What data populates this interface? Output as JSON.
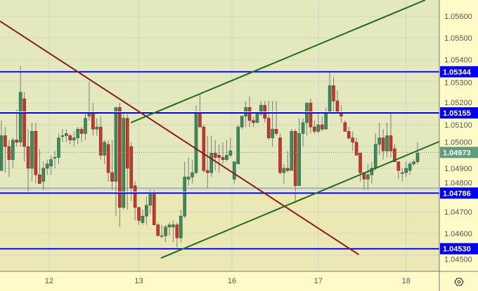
{
  "chart_data": {
    "type": "candlestick",
    "title": "",
    "ylim": [
      1.04425,
      1.05674
    ],
    "grid": true,
    "colors": {
      "up": "#3f8a5c",
      "down": "#c8372a",
      "wick": "#7a7a7a",
      "level": "#0000ff",
      "trend_up": "#1f6b1f",
      "trend_down": "#8b1a1a",
      "current": "#5f9e7c",
      "bg_upper": "#e4e9bd",
      "bg_lower": "#ebe8b4",
      "axis_bg": "#fffbc9"
    },
    "x_ticks": [
      {
        "label": "12",
        "index": 12.5
      },
      {
        "label": "13",
        "index": 36
      },
      {
        "label": "16",
        "index": 60.4
      },
      {
        "label": "17",
        "index": 83
      },
      {
        "label": "18",
        "index": 106
      }
    ],
    "y_ticks": [
      "1.05600",
      "1.05500",
      "1.05400",
      "1.05300",
      "1.05200",
      "1.05100",
      "1.05000",
      "1.04900",
      "1.04800",
      "1.04700",
      "1.04600",
      "1.04500"
    ],
    "levels": [
      {
        "label": "1.05344",
        "value": 1.05344
      },
      {
        "label": "1.05155",
        "value": 1.05155
      },
      {
        "label": "1.04786",
        "value": 1.04786
      },
      {
        "label": "1.04530",
        "value": 1.0453
      }
    ],
    "current_price": {
      "label": "1.04973",
      "value": 1.04973
    },
    "trendlines": [
      {
        "color": "trend_down",
        "from": [
          -0.4,
          1.05577
        ],
        "to": [
          93.6,
          1.04503
        ]
      },
      {
        "color": "trend_up",
        "from": [
          33.9,
          1.0511
        ],
        "to": [
          111,
          1.05674
        ]
      },
      {
        "color": "trend_up",
        "from": [
          41.8,
          1.04487
        ],
        "to": [
          114.7,
          1.05023
        ]
      }
    ],
    "candles_ohlc": [
      [
        1.0489,
        1.0512,
        1.0489,
        1.0505
      ],
      [
        1.0505,
        1.0509,
        1.0488,
        1.05
      ],
      [
        1.05,
        1.0503,
        1.0486,
        1.0494
      ],
      [
        1.0494,
        1.0504,
        1.049,
        1.0503
      ],
      [
        1.0503,
        1.0517,
        1.05,
        1.0502
      ],
      [
        1.0502,
        1.0537,
        1.05,
        1.0525
      ],
      [
        1.0522,
        1.0525,
        1.0493,
        1.05
      ],
      [
        1.05,
        1.0508,
        1.0479,
        1.049
      ],
      [
        1.049,
        1.0511,
        1.0484,
        1.0507
      ],
      [
        1.0507,
        1.0511,
        1.0483,
        1.0487
      ],
      [
        1.0487,
        1.0499,
        1.0483,
        1.0483
      ],
      [
        1.0484,
        1.0493,
        1.048,
        1.049
      ],
      [
        1.049,
        1.0494,
        1.0487,
        1.0492
      ],
      [
        1.0491,
        1.0496,
        1.0487,
        1.0494
      ],
      [
        1.0495,
        1.0498,
        1.049,
        1.0495
      ],
      [
        1.0495,
        1.0506,
        1.0492,
        1.0504
      ],
      [
        1.0505,
        1.0508,
        1.0502,
        1.0505
      ],
      [
        1.0505,
        1.0508,
        1.0502,
        1.0506
      ],
      [
        1.0505,
        1.0506,
        1.0501,
        1.0503
      ],
      [
        1.0503,
        1.0507,
        1.05,
        1.0504
      ],
      [
        1.0504,
        1.0509,
        1.0501,
        1.0508
      ],
      [
        1.0508,
        1.0509,
        1.0502,
        1.0506
      ],
      [
        1.0506,
        1.0516,
        1.0503,
        1.0513
      ],
      [
        1.0514,
        1.053,
        1.0512,
        1.0516
      ],
      [
        1.0516,
        1.052,
        1.0505,
        1.0508
      ],
      [
        1.0508,
        1.0513,
        1.0505,
        1.0509
      ],
      [
        1.0509,
        1.0514,
        1.0494,
        1.0496
      ],
      [
        1.0496,
        1.0503,
        1.0492,
        1.0502
      ],
      [
        1.0501,
        1.0503,
        1.0484,
        1.0488
      ],
      [
        1.0488,
        1.0503,
        1.048,
        1.0484
      ],
      [
        1.0484,
        1.0518,
        1.0468,
        1.0518
      ],
      [
        1.0518,
        1.052,
        1.0463,
        1.0472
      ],
      [
        1.0472,
        1.0515,
        1.0471,
        1.0513
      ],
      [
        1.0513,
        1.0515,
        1.0471,
        1.049
      ],
      [
        1.05,
        1.0502,
        1.0475,
        1.0481
      ],
      [
        1.0482,
        1.0484,
        1.0466,
        1.0472
      ],
      [
        1.0472,
        1.0472,
        1.0464,
        1.0466
      ],
      [
        1.0465,
        1.0471,
        1.0464,
        1.0468
      ],
      [
        1.0468,
        1.0477,
        1.0464,
        1.0473
      ],
      [
        1.0473,
        1.048,
        1.0469,
        1.0478
      ],
      [
        1.0478,
        1.048,
        1.0464,
        1.0464
      ],
      [
        1.0464,
        1.0465,
        1.0459,
        1.0459
      ],
      [
        1.0459,
        1.0464,
        1.0458,
        1.0459
      ],
      [
        1.0459,
        1.0464,
        1.0456,
        1.0463
      ],
      [
        1.0463,
        1.0465,
        1.0459,
        1.0464
      ],
      [
        1.0463,
        1.0466,
        1.0456,
        1.0464
      ],
      [
        1.0464,
        1.0465,
        1.0453,
        1.0458
      ],
      [
        1.0458,
        1.0471,
        1.0456,
        1.0468
      ],
      [
        1.0468,
        1.0493,
        1.0467,
        1.0486
      ],
      [
        1.0485,
        1.0495,
        1.0482,
        1.0486
      ],
      [
        1.0486,
        1.0494,
        1.0483,
        1.0488
      ],
      [
        1.0488,
        1.0519,
        1.0487,
        1.0515
      ],
      [
        1.0515,
        1.0524,
        1.0509,
        1.0509
      ],
      [
        1.0509,
        1.051,
        1.0488,
        1.0489
      ],
      [
        1.0489,
        1.0505,
        1.0481,
        1.0488
      ],
      [
        1.0488,
        1.0505,
        1.0486,
        1.0497
      ],
      [
        1.0497,
        1.0503,
        1.0489,
        1.0495
      ],
      [
        1.0496,
        1.0501,
        1.0488,
        1.0495
      ],
      [
        1.0495,
        1.0502,
        1.0492,
        1.0494
      ],
      [
        1.0494,
        1.0503,
        1.0493,
        1.0496
      ],
      [
        1.0496,
        1.0504,
        1.0495,
        1.0498
      ],
      [
        1.0485,
        1.0493,
        1.0483,
        1.0493
      ],
      [
        1.0492,
        1.051,
        1.0492,
        1.0509
      ],
      [
        1.0509,
        1.0514,
        1.0508,
        1.0514
      ],
      [
        1.0514,
        1.0521,
        1.0509,
        1.0518
      ],
      [
        1.0518,
        1.0523,
        1.0509,
        1.0512
      ],
      [
        1.0512,
        1.0514,
        1.0509,
        1.0511
      ],
      [
        1.0511,
        1.0516,
        1.0511,
        1.0515
      ],
      [
        1.0515,
        1.0521,
        1.0514,
        1.0519
      ],
      [
        1.0519,
        1.0521,
        1.0511,
        1.0513
      ],
      [
        1.0513,
        1.0521,
        1.0503,
        1.0504
      ],
      [
        1.0504,
        1.0521,
        1.05,
        1.0508
      ],
      [
        1.0508,
        1.0521,
        1.0505,
        1.0506
      ],
      [
        1.0504,
        1.0506,
        1.0487,
        1.0488
      ],
      [
        1.0488,
        1.0492,
        1.0483,
        1.049
      ],
      [
        1.049,
        1.0498,
        1.0488,
        1.0489
      ],
      [
        1.0489,
        1.0508,
        1.0489,
        1.0507
      ],
      [
        1.0507,
        1.0508,
        1.0474,
        1.0482
      ],
      [
        1.0482,
        1.0513,
        1.0482,
        1.0506
      ],
      [
        1.0506,
        1.0513,
        1.05,
        1.0511
      ],
      [
        1.0511,
        1.052,
        1.0505,
        1.052
      ],
      [
        1.052,
        1.0522,
        1.0506,
        1.0509
      ],
      [
        1.0509,
        1.0512,
        1.0506,
        1.0507
      ],
      [
        1.0507,
        1.0515,
        1.0506,
        1.051
      ],
      [
        1.051,
        1.0514,
        1.0507,
        1.0508
      ],
      [
        1.0508,
        1.0518,
        1.0508,
        1.0516
      ],
      [
        1.0516,
        1.0534,
        1.0515,
        1.0528
      ],
      [
        1.0528,
        1.0532,
        1.0515,
        1.0521
      ],
      [
        1.0521,
        1.0526,
        1.0516,
        1.0516
      ],
      [
        1.0516,
        1.0519,
        1.0511,
        1.0514
      ],
      [
        1.0511,
        1.0512,
        1.0507,
        1.0507
      ],
      [
        1.0507,
        1.0509,
        1.0503,
        1.0504
      ],
      [
        1.0504,
        1.0507,
        1.0498,
        1.0502
      ],
      [
        1.0502,
        1.0504,
        1.0496,
        1.0496
      ],
      [
        1.0497,
        1.0497,
        1.0484,
        1.0488
      ],
      [
        1.0488,
        1.0488,
        1.048,
        1.0485
      ],
      [
        1.0485,
        1.0492,
        1.048,
        1.0487
      ],
      [
        1.0487,
        1.0493,
        1.0483,
        1.049
      ],
      [
        1.049,
        1.0506,
        1.0489,
        1.0501
      ],
      [
        1.0501,
        1.0511,
        1.0496,
        1.0504
      ],
      [
        1.0504,
        1.0508,
        1.0494,
        1.0498
      ],
      [
        1.0498,
        1.0511,
        1.0495,
        1.0505
      ],
      [
        1.0505,
        1.0516,
        1.0495,
        1.0498
      ],
      [
        1.0499,
        1.0501,
        1.0493,
        1.0493
      ],
      [
        1.0493,
        1.0493,
        1.0485,
        1.0489
      ],
      [
        1.0488,
        1.049,
        1.0484,
        1.0488
      ],
      [
        1.0488,
        1.0493,
        1.0486,
        1.049
      ],
      [
        1.0489,
        1.0493,
        1.0487,
        1.0492
      ],
      [
        1.0492,
        1.0494,
        1.0491,
        1.0493
      ],
      [
        1.0493,
        1.0502,
        1.0492,
        1.0497
      ]
    ],
    "settings_icon": "hexagon-gear-icon"
  }
}
